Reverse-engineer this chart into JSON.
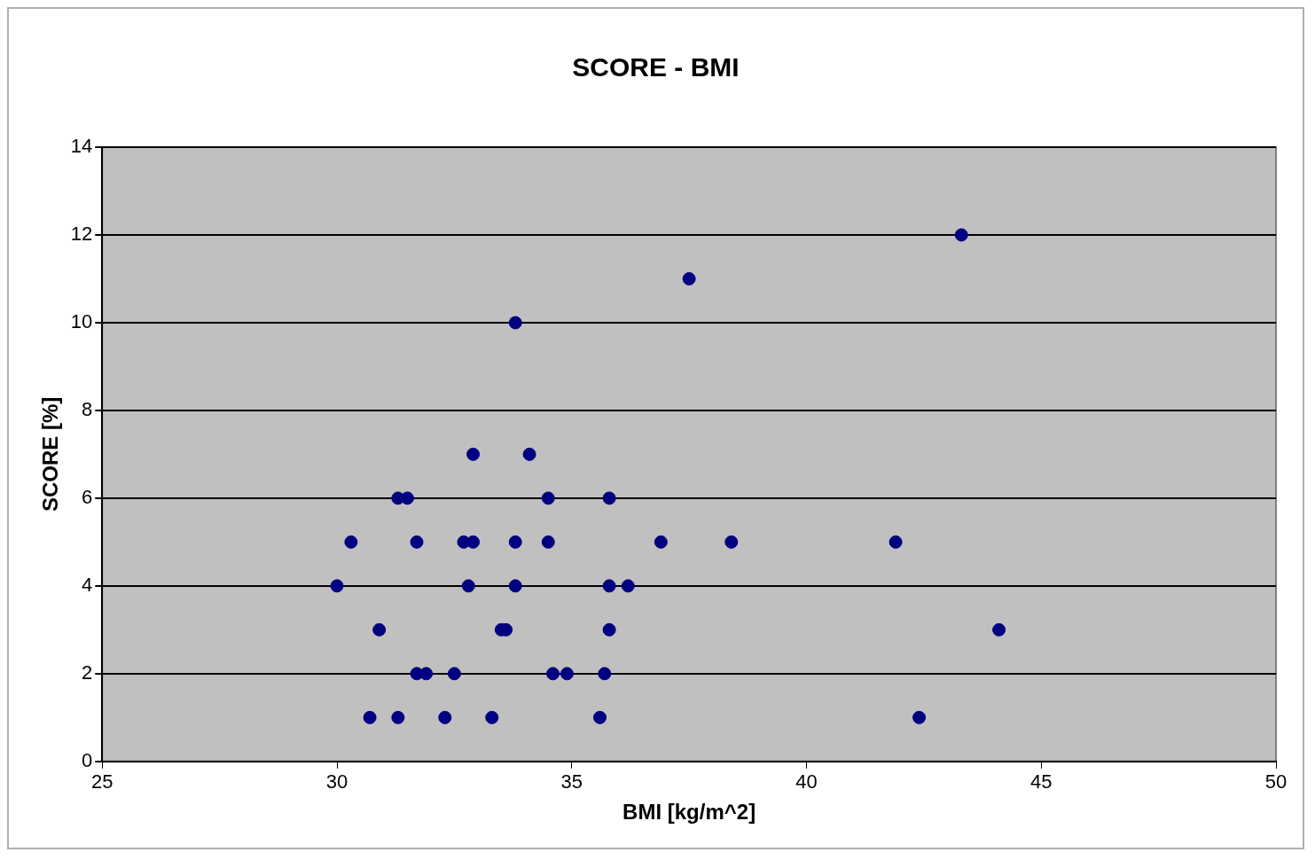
{
  "chart_data": {
    "type": "scatter",
    "title": "SCORE - BMI",
    "xlabel": "BMI [kg/m^2]",
    "ylabel": "SCORE [%]",
    "series": [
      {
        "color": "#000080",
        "x": [
          43.3,
          37.5,
          33.8,
          32.9,
          34.1,
          31.3,
          31.5,
          34.5,
          35.8,
          30.3,
          31.7,
          32.7,
          32.9,
          33.8,
          34.5,
          36.9,
          38.4,
          41.9,
          30.0,
          32.8,
          33.8,
          35.8,
          36.2,
          30.9,
          33.5,
          33.6,
          35.8,
          44.1,
          31.7,
          31.9,
          32.5,
          34.6,
          34.9,
          35.7,
          30.7,
          31.3,
          32.3,
          33.3,
          35.6,
          42.4
        ],
        "values": [
          12,
          11,
          10,
          7,
          7,
          6,
          6,
          6,
          6,
          5,
          5,
          5,
          5,
          5,
          5,
          5,
          5,
          5,
          4,
          4,
          4,
          4,
          4,
          3,
          3,
          3,
          3,
          3,
          2,
          2,
          2,
          2,
          2,
          2,
          1,
          1,
          1,
          1,
          1,
          1
        ]
      }
    ],
    "xlim": [
      25,
      50
    ],
    "xticks": [
      25,
      30,
      35,
      40,
      45,
      50
    ],
    "ylim": [
      0,
      14
    ],
    "yticks": [
      0,
      2,
      4,
      6,
      8,
      10,
      12,
      14
    ],
    "grid": "y",
    "legend": false,
    "marker": "circle"
  }
}
